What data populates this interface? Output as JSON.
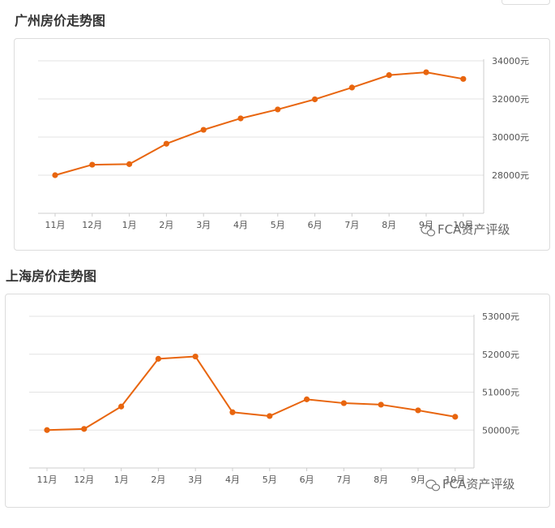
{
  "colors": {
    "line": "#e8650e",
    "grid": "#e3e3e3",
    "axis": "#cccccc",
    "text": "#555555"
  },
  "watermark": "FCA资产评级",
  "watermark_icon": "wechat-icon",
  "chart_data": [
    {
      "type": "line",
      "title": "广州房价走势图",
      "categories": [
        "11月",
        "12月",
        "1月",
        "2月",
        "3月",
        "4月",
        "5月",
        "6月",
        "7月",
        "8月",
        "9月",
        "10月"
      ],
      "series": [
        {
          "values": [
            28000,
            28550,
            28580,
            29650,
            30380,
            30980,
            31450,
            31980,
            32600,
            33250,
            33400,
            33050
          ]
        }
      ],
      "y_ticks": [
        28000,
        30000,
        32000,
        34000
      ],
      "y_tick_labels": [
        "28000元",
        "30000元",
        "32000元",
        "34000元"
      ],
      "ylim": [
        26000,
        34000
      ],
      "y_axis_position": "right",
      "grid": true,
      "xlabel": "",
      "ylabel": ""
    },
    {
      "type": "line",
      "title": "上海房价走势图",
      "categories": [
        "11月",
        "12月",
        "1月",
        "2月",
        "3月",
        "4月",
        "5月",
        "6月",
        "7月",
        "8月",
        "9月",
        "10月"
      ],
      "series": [
        {
          "values": [
            50000,
            50030,
            50620,
            51880,
            51940,
            50470,
            50370,
            50810,
            50710,
            50670,
            50520,
            50350
          ]
        }
      ],
      "y_ticks": [
        50000,
        51000,
        52000,
        53000
      ],
      "y_tick_labels": [
        "50000元",
        "51000元",
        "52000元",
        "53000元"
      ],
      "ylim": [
        49000,
        53000
      ],
      "y_axis_position": "right",
      "grid": true,
      "xlabel": "",
      "ylabel": ""
    }
  ]
}
